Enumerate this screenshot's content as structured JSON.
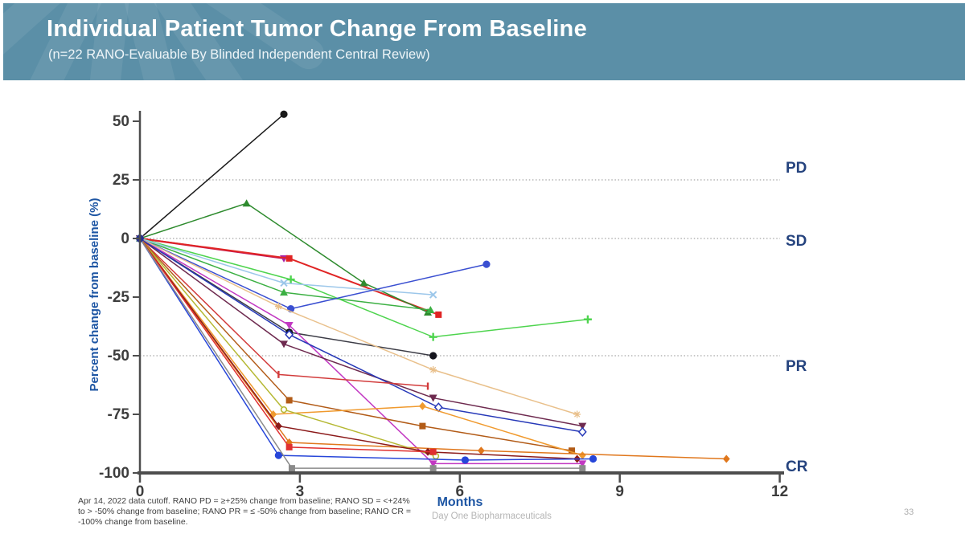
{
  "header": {
    "title": "Individual Patient Tumor Change From Baseline",
    "subtitle": "(n=22 RANO-Evaluable By Blinded Independent Central Review)",
    "bg_color": "#5b8fa7",
    "text_color": "#ffffff"
  },
  "footer": {
    "footnote_lines": [
      "Apr 14, 2022 data cutoff. RANO PD = ≥+25% change from baseline; RANO SD = <+24%",
      "to > -50% change from baseline; RANO PR = ≤ -50% change from baseline; RANO CR =",
      "-100% change from baseline."
    ],
    "brand": "Day One Biopharmaceuticals",
    "page_number": "33"
  },
  "chart_data": {
    "type": "line",
    "title": "",
    "xlabel": "Months",
    "ylabel": "Percent change from baseline (%)",
    "xlim": [
      0,
      12
    ],
    "ylim": [
      -100,
      50
    ],
    "x_ticks": [
      0,
      3,
      6,
      9,
      12
    ],
    "y_ticks": [
      50,
      25,
      0,
      -25,
      -50,
      -75,
      -100
    ],
    "grid": "horizontal-dotted-reference-lines",
    "legend": "none",
    "axis_label_color": "#1d55a3",
    "ref_label_color": "#25437e",
    "tick_label_color": "#3d3d3d",
    "axis_color": "#4d4d4d",
    "reference_lines": [
      {
        "value": 25,
        "label": "PD",
        "dotted": true,
        "label_dy": -9
      },
      {
        "value": 0,
        "label": "SD",
        "dotted": true,
        "label_dy": 9
      },
      {
        "value": -50,
        "label": "PR",
        "dotted": true,
        "label_dy": 19
      },
      {
        "value": -100,
        "label": "CR",
        "dotted": false,
        "label_dy": -2
      }
    ],
    "series": [
      {
        "name": "patient-01",
        "color": "#1a1a1a",
        "marker": "circle",
        "points": [
          [
            0,
            0
          ],
          [
            2.7,
            53
          ]
        ]
      },
      {
        "name": "patient-02",
        "color": "#c2185b",
        "marker": "triangle-down",
        "marker_color": "#a822a8",
        "width": 2.2,
        "points": [
          [
            0,
            0
          ],
          [
            2.7,
            -8.5
          ]
        ]
      },
      {
        "name": "patient-03",
        "color": "#e02424",
        "marker": "square",
        "width": 2.0,
        "points": [
          [
            0,
            0
          ],
          [
            2.8,
            -8.5
          ],
          [
            5.6,
            -32.5
          ]
        ]
      },
      {
        "name": "patient-04",
        "color": "#2e8b2e",
        "marker": "triangle-up",
        "points": [
          [
            0,
            0
          ],
          [
            2.0,
            15
          ],
          [
            4.2,
            -19
          ],
          [
            5.4,
            -31.5
          ]
        ]
      },
      {
        "name": "patient-05",
        "color": "#3cb043",
        "marker": "triangle-up",
        "points": [
          [
            0,
            0
          ],
          [
            2.7,
            -23
          ],
          [
            5.45,
            -30.5
          ]
        ]
      },
      {
        "name": "patient-06",
        "color": "#4ed44e",
        "marker": "plus",
        "points": [
          [
            0,
            0
          ],
          [
            2.83,
            -17.5
          ],
          [
            5.5,
            -42
          ],
          [
            8.4,
            -34.5
          ]
        ]
      },
      {
        "name": "patient-07",
        "color": "#9cc7ea",
        "marker": "x",
        "points": [
          [
            0,
            0
          ],
          [
            2.7,
            -19
          ],
          [
            5.5,
            -24
          ]
        ]
      },
      {
        "name": "patient-08",
        "color": "#3a4fd1",
        "marker": "circle",
        "points": [
          [
            0,
            0
          ],
          [
            2.83,
            -30
          ],
          [
            6.5,
            -11
          ]
        ]
      },
      {
        "name": "patient-09",
        "color": "#3c3c46",
        "marker": "circle",
        "marker_color": "#16161e",
        "points": [
          [
            0,
            0
          ],
          [
            2.8,
            -40
          ],
          [
            5.5,
            -50
          ]
        ]
      },
      {
        "name": "patient-10",
        "color": "#c238c2",
        "marker": "triangle-down",
        "points": [
          [
            0,
            0
          ],
          [
            2.8,
            -37
          ],
          [
            5.5,
            -96
          ],
          [
            8.3,
            -96
          ]
        ]
      },
      {
        "name": "patient-11",
        "color": "#e9c08b",
        "marker": "star",
        "points": [
          [
            0,
            0
          ],
          [
            2.6,
            -29
          ],
          [
            5.5,
            -56
          ],
          [
            8.2,
            -75
          ]
        ]
      },
      {
        "name": "patient-12",
        "color": "#6e2a4f",
        "marker": "triangle-down",
        "points": [
          [
            0,
            0
          ],
          [
            2.7,
            -45
          ],
          [
            5.5,
            -68
          ],
          [
            8.3,
            -80
          ]
        ]
      },
      {
        "name": "patient-13",
        "color": "#2638b8",
        "marker": "diamond-open",
        "points": [
          [
            0,
            0
          ],
          [
            2.8,
            -41
          ],
          [
            5.6,
            -72
          ],
          [
            8.3,
            -82.5
          ]
        ]
      },
      {
        "name": "patient-14",
        "color": "#d23b3b",
        "marker": "tick",
        "points": [
          [
            0,
            0
          ],
          [
            2.6,
            -58
          ],
          [
            5.4,
            -63
          ]
        ]
      },
      {
        "name": "patient-15",
        "color": "#b25b17",
        "marker": "square",
        "points": [
          [
            0,
            0
          ],
          [
            2.8,
            -69
          ],
          [
            5.3,
            -80
          ],
          [
            8.1,
            -90.5
          ]
        ]
      },
      {
        "name": "patient-16",
        "color": "#f09a2e",
        "marker": "diamond",
        "points": [
          [
            0,
            0
          ],
          [
            2.5,
            -75
          ],
          [
            5.3,
            -71.5
          ],
          [
            8.3,
            -92.5
          ]
        ]
      },
      {
        "name": "patient-17",
        "color": "#e0771c",
        "marker": "diamond",
        "points": [
          [
            0,
            0
          ],
          [
            2.8,
            -87
          ],
          [
            6.4,
            -90.5
          ],
          [
            11.0,
            -94
          ]
        ]
      },
      {
        "name": "patient-18",
        "color": "#b5b832",
        "marker": "circle-open",
        "points": [
          [
            0,
            0
          ],
          [
            2.7,
            -73
          ],
          [
            5.55,
            -92.8
          ]
        ]
      },
      {
        "name": "patient-19",
        "color": "#8b1a1a",
        "marker": "diamond",
        "points": [
          [
            0,
            0
          ],
          [
            2.6,
            -80
          ],
          [
            5.4,
            -91
          ],
          [
            8.2,
            -94
          ]
        ]
      },
      {
        "name": "patient-20",
        "color": "#e03030",
        "marker": "square",
        "points": [
          [
            0,
            0
          ],
          [
            2.8,
            -89
          ],
          [
            5.5,
            -91
          ]
        ]
      },
      {
        "name": "patient-21",
        "color": "#2746d9",
        "marker": "circle",
        "points": [
          [
            0,
            0
          ],
          [
            2.6,
            -92.5
          ],
          [
            6.1,
            -94.5
          ],
          [
            8.5,
            -94
          ]
        ]
      },
      {
        "name": "patient-22",
        "color": "#8a8a8a",
        "marker": "square",
        "points": [
          [
            0,
            0
          ],
          [
            2.85,
            -98
          ],
          [
            5.5,
            -98
          ],
          [
            8.3,
            -98
          ]
        ]
      }
    ]
  }
}
